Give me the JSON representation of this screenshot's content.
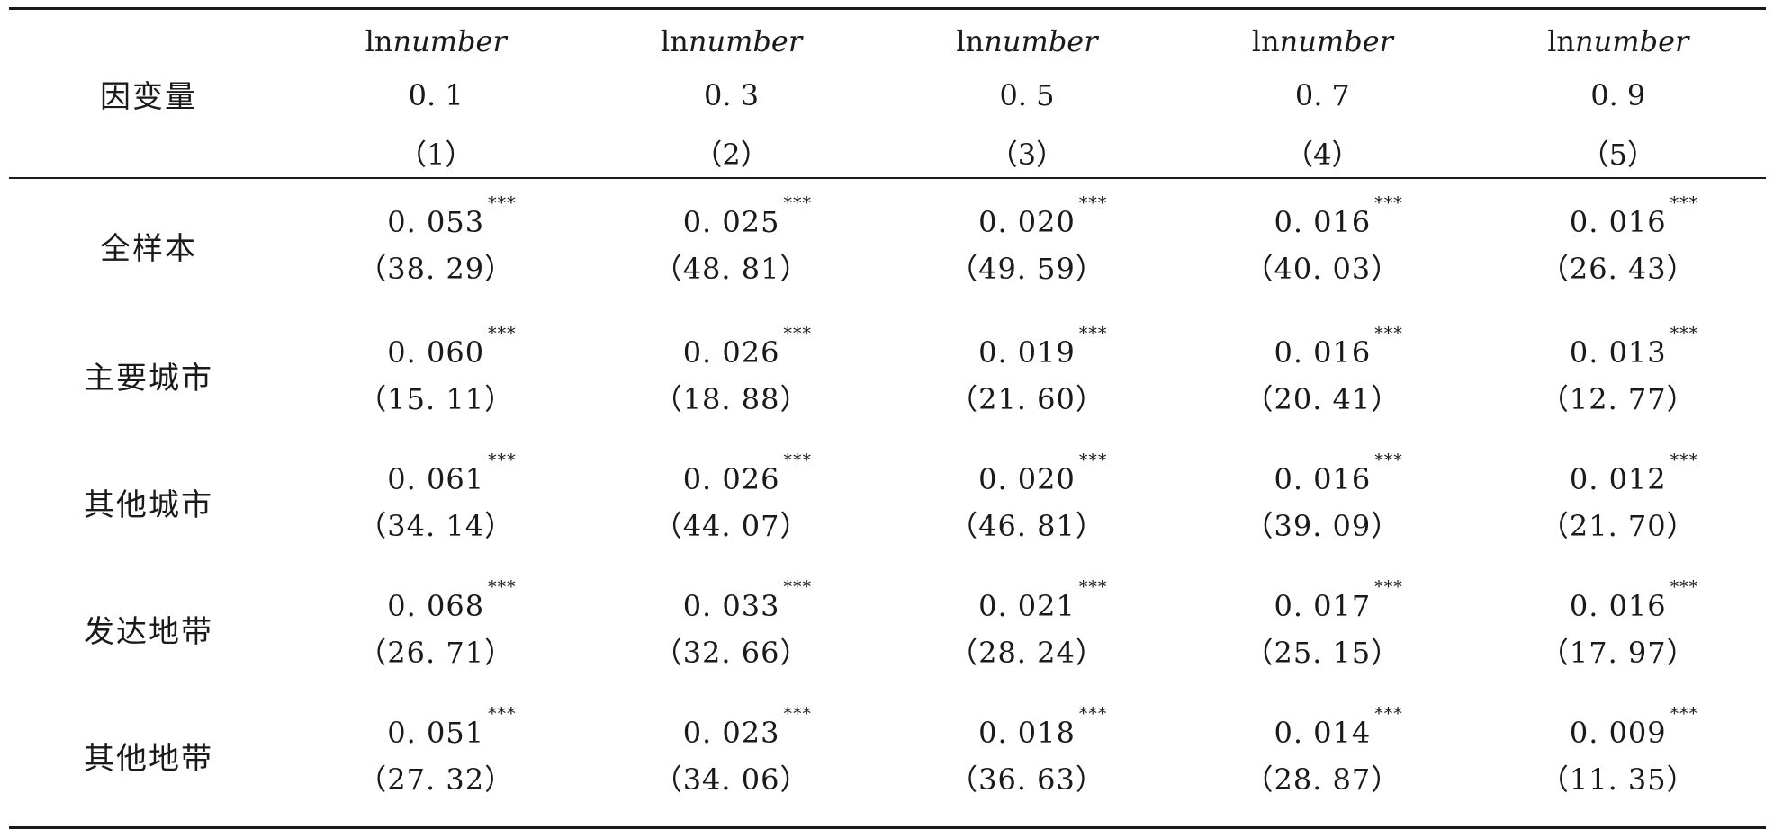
{
  "table": {
    "header": {
      "row_label": "因变量",
      "columns": [
        {
          "var_prefix": "ln",
          "var_name": "number",
          "quantile": "0. 1",
          "index": "（1）"
        },
        {
          "var_prefix": "ln",
          "var_name": "number",
          "quantile": "0. 3",
          "index": "（2）"
        },
        {
          "var_prefix": "ln",
          "var_name": "number",
          "quantile": "0. 5",
          "index": "（3）"
        },
        {
          "var_prefix": "ln",
          "var_name": "number",
          "quantile": "0. 7",
          "index": "（4）"
        },
        {
          "var_prefix": "ln",
          "var_name": "number",
          "quantile": "0. 9",
          "index": "（5）"
        }
      ]
    },
    "rows": [
      {
        "label": "全样本",
        "cells": [
          {
            "coef": "0. 053",
            "stars": "***",
            "t": "（38. 29）"
          },
          {
            "coef": "0. 025",
            "stars": "***",
            "t": "（48. 81）"
          },
          {
            "coef": "0. 020",
            "stars": "***",
            "t": "（49. 59）"
          },
          {
            "coef": "0. 016",
            "stars": "***",
            "t": "（40. 03）"
          },
          {
            "coef": "0. 016",
            "stars": "***",
            "t": "（26. 43）"
          }
        ]
      },
      {
        "label": "主要城市",
        "cells": [
          {
            "coef": "0. 060",
            "stars": "***",
            "t": "（15. 11）"
          },
          {
            "coef": "0. 026",
            "stars": "***",
            "t": "（18. 88）"
          },
          {
            "coef": "0. 019",
            "stars": "***",
            "t": "（21. 60）"
          },
          {
            "coef": "0. 016",
            "stars": "***",
            "t": "（20. 41）"
          },
          {
            "coef": "0. 013",
            "stars": "***",
            "t": "（12. 77）"
          }
        ]
      },
      {
        "label": "其他城市",
        "cells": [
          {
            "coef": "0. 061",
            "stars": "***",
            "t": "（34. 14）"
          },
          {
            "coef": "0. 026",
            "stars": "***",
            "t": "（44. 07）"
          },
          {
            "coef": "0. 020",
            "stars": "***",
            "t": "（46. 81）"
          },
          {
            "coef": "0. 016",
            "stars": "***",
            "t": "（39. 09）"
          },
          {
            "coef": "0. 012",
            "stars": "***",
            "t": "（21. 70）"
          }
        ]
      },
      {
        "label": "发达地带",
        "cells": [
          {
            "coef": "0. 068",
            "stars": "***",
            "t": "（26. 71）"
          },
          {
            "coef": "0. 033",
            "stars": "***",
            "t": "（32. 66）"
          },
          {
            "coef": "0. 021",
            "stars": "***",
            "t": "（28. 24）"
          },
          {
            "coef": "0. 017",
            "stars": "***",
            "t": "（25. 15）"
          },
          {
            "coef": "0. 016",
            "stars": "***",
            "t": "（17. 97）"
          }
        ]
      },
      {
        "label": "其他地带",
        "cells": [
          {
            "coef": "0. 051",
            "stars": "***",
            "t": "（27. 32）"
          },
          {
            "coef": "0. 023",
            "stars": "***",
            "t": "（34. 06）"
          },
          {
            "coef": "0. 018",
            "stars": "***",
            "t": "（36. 63）"
          },
          {
            "coef": "0. 014",
            "stars": "***",
            "t": "（28. 87）"
          },
          {
            "coef": "0. 009",
            "stars": "***",
            "t": "（11. 35）"
          }
        ]
      }
    ]
  }
}
